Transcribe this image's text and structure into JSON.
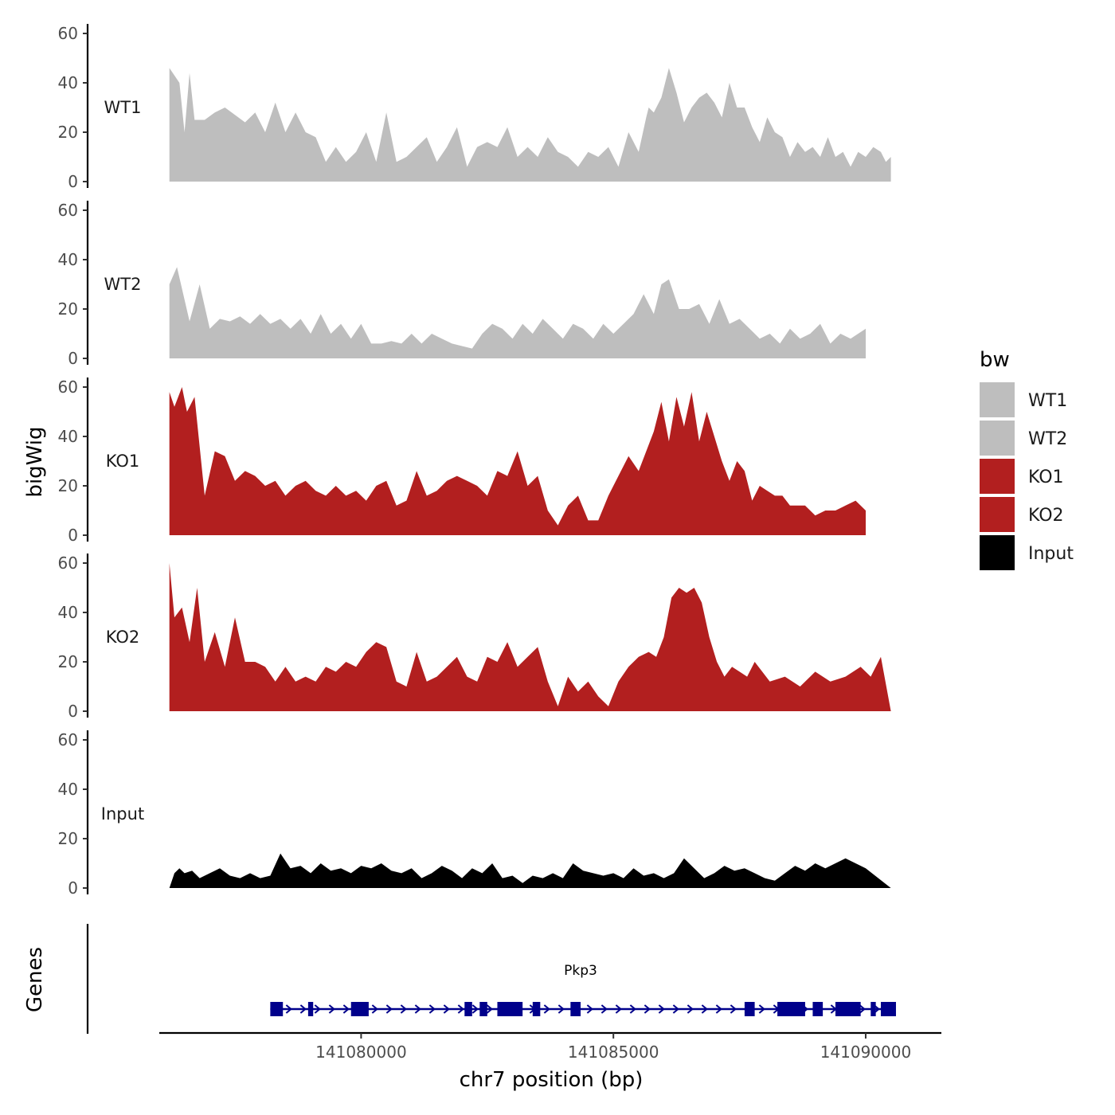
{
  "chart_data": {
    "type": "area",
    "ylabel": "bigWig",
    "xlabel": "chr7 position (bp)",
    "genes_label": "Genes",
    "ylim": [
      0,
      60
    ],
    "yticks": [
      0,
      20,
      40,
      60
    ],
    "xlim": [
      141076000,
      141091500
    ],
    "xticks": [
      141080000,
      141085000,
      141090000
    ],
    "x_start": 141076200,
    "x_end": 141090500,
    "tracks": [
      {
        "name": "WT1",
        "color": "#bebebe",
        "group": "WT1",
        "values": [
          46,
          40,
          20,
          44,
          25,
          25,
          28,
          30,
          27,
          24,
          28,
          20,
          32,
          20,
          28,
          20,
          18,
          8,
          14,
          8,
          12,
          20,
          8,
          28,
          8,
          10,
          14,
          18,
          8,
          14,
          22,
          6,
          14,
          16,
          14,
          22,
          10,
          14,
          10,
          18,
          12,
          10,
          6,
          12,
          10,
          14,
          6,
          20,
          12,
          26,
          30,
          28,
          34,
          46,
          36,
          24,
          30,
          34,
          36,
          32,
          26,
          40,
          30,
          30,
          22,
          16,
          26,
          20,
          18,
          10,
          16,
          12,
          14,
          10,
          18,
          10,
          12,
          6,
          12,
          10,
          14,
          12,
          8,
          10
        ],
        "pos": [
          141076200,
          141076400,
          141076500,
          141076600,
          141076700,
          141076900,
          141077100,
          141077300,
          141077500,
          141077700,
          141077900,
          141078100,
          141078300,
          141078500,
          141078700,
          141078900,
          141079100,
          141079300,
          141079500,
          141079700,
          141079900,
          141080100,
          141080300,
          141080500,
          141080700,
          141080900,
          141081100,
          141081300,
          141081500,
          141081700,
          141081900,
          141082100,
          141082300,
          141082500,
          141082700,
          141082900,
          141083100,
          141083300,
          141083500,
          141083700,
          141083900,
          141084100,
          141084300,
          141084500,
          141084700,
          141084900,
          141085100,
          141085300,
          141085500,
          141085650,
          141085700,
          141085800,
          141085950,
          141086100,
          141086250,
          141086400,
          141086550,
          141086700,
          141086850,
          141087000,
          141087150,
          141087300,
          141087450,
          141087600,
          141087750,
          141087900,
          141088050,
          141088200,
          141088350,
          141088500,
          141088650,
          141088800,
          141088950,
          141089100,
          141089250,
          141089400,
          141089550,
          141089700,
          141089850,
          141090000,
          141090150,
          141090300,
          141090400,
          141090500
        ]
      },
      {
        "name": "WT2",
        "color": "#bebebe",
        "group": "WT2",
        "values": [
          30,
          37,
          15,
          30,
          12,
          16,
          15,
          17,
          14,
          18,
          14,
          16,
          12,
          16,
          10,
          18,
          10,
          14,
          8,
          14,
          6,
          6,
          7,
          6,
          10,
          6,
          10,
          8,
          6,
          5,
          4,
          10,
          14,
          12,
          8,
          14,
          10,
          16,
          12,
          8,
          14,
          12,
          8,
          14,
          10,
          14,
          18,
          26,
          18,
          30,
          32,
          20,
          20,
          22,
          14,
          24,
          14,
          16,
          12,
          8,
          10,
          6,
          12,
          8,
          10,
          14,
          6,
          10,
          8,
          12
        ],
        "pos": [
          141076200,
          141076350,
          141076600,
          141076800,
          141077000,
          141077200,
          141077400,
          141077600,
          141077800,
          141078000,
          141078200,
          141078400,
          141078600,
          141078800,
          141079000,
          141079200,
          141079400,
          141079600,
          141079800,
          141080000,
          141080200,
          141080400,
          141080600,
          141080800,
          141081000,
          141081200,
          141081400,
          141081600,
          141081800,
          141082000,
          141082200,
          141082400,
          141082600,
          141082800,
          141083000,
          141083200,
          141083400,
          141083600,
          141083800,
          141084000,
          141084200,
          141084400,
          141084600,
          141084800,
          141085000,
          141085200,
          141085400,
          141085600,
          141085800,
          141085950,
          141086100,
          141086300,
          141086500,
          141086700,
          141086900,
          141087100,
          141087300,
          141087500,
          141087700,
          141087900,
          141088100,
          141088300,
          141088500,
          141088700,
          141088900,
          141089100,
          141089300,
          141089500,
          141089700,
          141090000
        ]
      },
      {
        "name": "KO1",
        "color": "#b21f1f",
        "group": "KO1",
        "values": [
          58,
          52,
          60,
          50,
          56,
          16,
          34,
          32,
          22,
          26,
          24,
          20,
          22,
          16,
          20,
          22,
          18,
          16,
          20,
          16,
          18,
          14,
          20,
          22,
          12,
          14,
          26,
          16,
          18,
          22,
          24,
          22,
          20,
          16,
          26,
          24,
          34,
          20,
          24,
          10,
          4,
          12,
          16,
          6,
          6,
          16,
          24,
          32,
          26,
          34,
          42,
          54,
          38,
          56,
          44,
          58,
          38,
          50,
          40,
          30,
          22,
          30,
          26,
          14,
          20,
          18,
          16,
          16,
          12,
          12,
          12,
          8,
          10,
          10,
          12,
          14,
          10
        ],
        "pos": [
          141076200,
          141076300,
          141076450,
          141076550,
          141076700,
          141076900,
          141077100,
          141077300,
          141077500,
          141077700,
          141077900,
          141078100,
          141078300,
          141078500,
          141078700,
          141078900,
          141079100,
          141079300,
          141079500,
          141079700,
          141079900,
          141080100,
          141080300,
          141080500,
          141080700,
          141080900,
          141081100,
          141081300,
          141081500,
          141081700,
          141081900,
          141082100,
          141082300,
          141082500,
          141082700,
          141082900,
          141083100,
          141083300,
          141083500,
          141083700,
          141083900,
          141084100,
          141084300,
          141084500,
          141084700,
          141084900,
          141085100,
          141085300,
          141085500,
          141085650,
          141085800,
          141085950,
          141086100,
          141086250,
          141086400,
          141086550,
          141086700,
          141086850,
          141087000,
          141087150,
          141087300,
          141087450,
          141087600,
          141087750,
          141087900,
          141088050,
          141088200,
          141088350,
          141088500,
          141088650,
          141088800,
          141089000,
          141089200,
          141089400,
          141089600,
          141089800,
          141090000
        ]
      },
      {
        "name": "KO2",
        "color": "#b21f1f",
        "group": "KO2",
        "values": [
          60,
          38,
          42,
          28,
          50,
          20,
          32,
          18,
          38,
          20,
          20,
          18,
          12,
          18,
          12,
          14,
          12,
          18,
          16,
          20,
          18,
          24,
          28,
          26,
          12,
          10,
          24,
          12,
          14,
          18,
          22,
          14,
          12,
          22,
          20,
          28,
          18,
          22,
          26,
          12,
          2,
          14,
          8,
          12,
          6,
          2,
          12,
          18,
          22,
          24,
          22,
          30,
          46,
          50,
          48,
          50,
          44,
          30,
          20,
          14,
          18,
          16,
          14,
          20,
          16,
          12,
          14,
          10,
          16,
          12,
          14,
          18,
          14,
          22,
          0
        ],
        "pos": [
          141076200,
          141076300,
          141076450,
          141076600,
          141076750,
          141076900,
          141077100,
          141077300,
          141077500,
          141077700,
          141077900,
          141078100,
          141078300,
          141078500,
          141078700,
          141078900,
          141079100,
          141079300,
          141079500,
          141079700,
          141079900,
          141080100,
          141080300,
          141080500,
          141080700,
          141080900,
          141081100,
          141081300,
          141081500,
          141081700,
          141081900,
          141082100,
          141082300,
          141082500,
          141082700,
          141082900,
          141083100,
          141083300,
          141083500,
          141083700,
          141083900,
          141084100,
          141084300,
          141084500,
          141084700,
          141084900,
          141085100,
          141085300,
          141085500,
          141085700,
          141085850,
          141086000,
          141086150,
          141086300,
          141086450,
          141086600,
          141086750,
          141086900,
          141087050,
          141087200,
          141087350,
          141087500,
          141087650,
          141087800,
          141087950,
          141088100,
          141088400,
          141088700,
          141089000,
          141089300,
          141089600,
          141089900,
          141090100,
          141090300,
          141090500
        ]
      },
      {
        "name": "Input",
        "color": "#000000",
        "group": "Input",
        "values": [
          0,
          6,
          8,
          6,
          7,
          4,
          6,
          8,
          5,
          4,
          6,
          4,
          5,
          14,
          8,
          9,
          6,
          10,
          7,
          8,
          6,
          9,
          8,
          10,
          7,
          6,
          8,
          4,
          6,
          9,
          7,
          4,
          8,
          6,
          10,
          4,
          5,
          2,
          5,
          4,
          6,
          4,
          10,
          7,
          6,
          5,
          6,
          4,
          8,
          5,
          6,
          4,
          6,
          12,
          8,
          4,
          6,
          9,
          7,
          8,
          6,
          4,
          3,
          6,
          9,
          7,
          10,
          8,
          12,
          8,
          0
        ],
        "pos": [
          141076200,
          141076300,
          141076400,
          141076500,
          141076650,
          141076800,
          141077000,
          141077200,
          141077400,
          141077600,
          141077800,
          141078000,
          141078200,
          141078400,
          141078600,
          141078800,
          141079000,
          141079200,
          141079400,
          141079600,
          141079800,
          141080000,
          141080200,
          141080400,
          141080600,
          141080800,
          141081000,
          141081200,
          141081400,
          141081600,
          141081800,
          141082000,
          141082200,
          141082400,
          141082600,
          141082800,
          141083000,
          141083200,
          141083400,
          141083600,
          141083800,
          141084000,
          141084200,
          141084400,
          141084600,
          141084800,
          141085000,
          141085200,
          141085400,
          141085600,
          141085800,
          141086000,
          141086200,
          141086400,
          141086600,
          141086800,
          141087000,
          141087200,
          141087400,
          141087600,
          141087800,
          141088000,
          141088200,
          141088400,
          141088600,
          141088800,
          141089000,
          141089200,
          141089600,
          141090000,
          141090500
        ]
      }
    ],
    "legend": {
      "title": "bw",
      "position": "right",
      "entries": [
        {
          "label": "WT1",
          "color": "#bebebe"
        },
        {
          "label": "WT2",
          "color": "#bebebe"
        },
        {
          "label": "KO1",
          "color": "#b21f1f"
        },
        {
          "label": "KO2",
          "color": "#b21f1f"
        },
        {
          "label": "Input",
          "color": "#000000"
        }
      ]
    },
    "gene": {
      "name": "Pkp3",
      "color": "#00008b",
      "strand": "+",
      "start": 141078200,
      "end": 141090500,
      "exons": [
        [
          141078200,
          141078450
        ],
        [
          141078950,
          141079050
        ],
        [
          141079800,
          141080150
        ],
        [
          141082050,
          141082200
        ],
        [
          141082350,
          141082500
        ],
        [
          141082700,
          141083200
        ],
        [
          141083400,
          141083550
        ],
        [
          141084150,
          141084350
        ],
        [
          141087600,
          141087800
        ],
        [
          141088250,
          141088800
        ],
        [
          141088950,
          141089150
        ],
        [
          141089400,
          141089900
        ],
        [
          141090100,
          141090200
        ],
        [
          141090300,
          141090600
        ]
      ]
    }
  }
}
